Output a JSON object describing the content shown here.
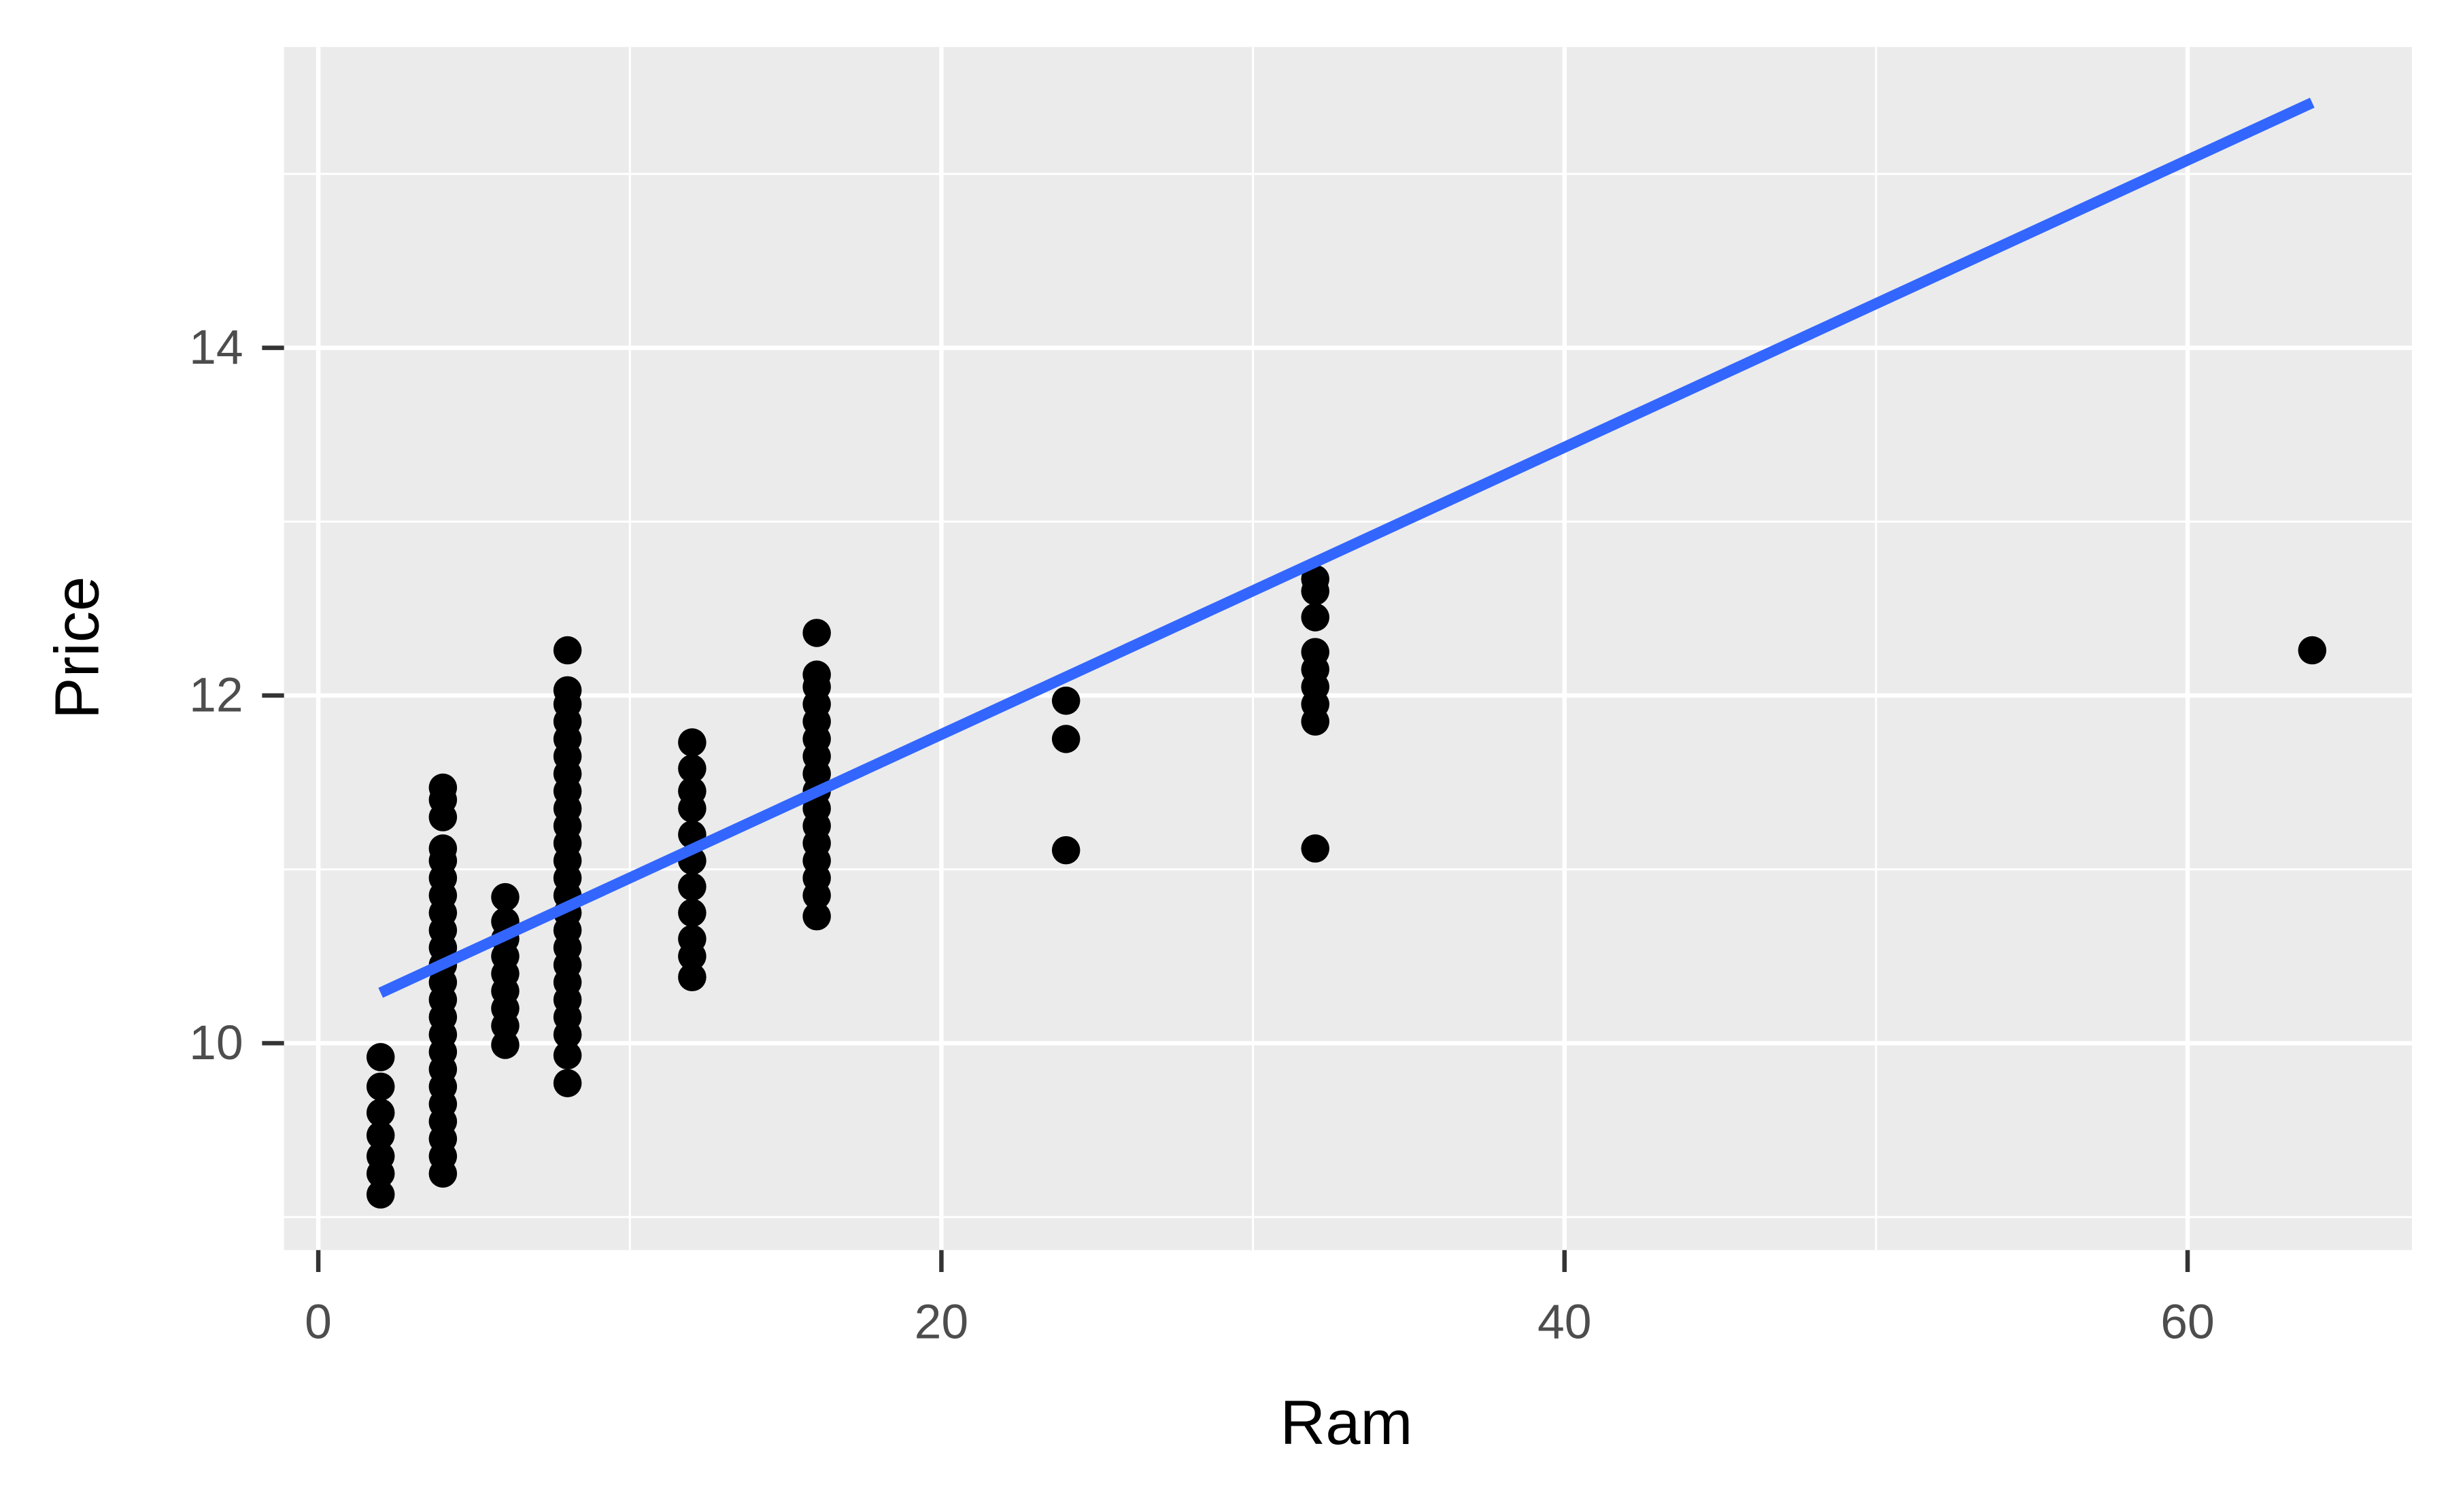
{
  "chart_data": {
    "type": "scatter",
    "x_label": "Ram",
    "y_label": "Price",
    "xlim": [
      -1.1,
      67.2
    ],
    "ylim": [
      8.81,
      15.73
    ],
    "xticks": [
      0,
      20,
      40,
      60
    ],
    "yticks": [
      10,
      12,
      14
    ],
    "x_minor_grid": [
      10,
      30,
      50
    ],
    "y_minor_grid": [
      9,
      11,
      13,
      15
    ],
    "grid": true,
    "panel_color": "#ebebeb",
    "points": {
      "color": "#000000",
      "x": [
        2,
        2,
        2,
        2,
        2,
        2,
        2,
        4,
        4,
        4,
        4,
        4,
        4,
        4,
        4,
        4,
        4,
        4,
        4,
        4,
        4,
        4,
        4,
        4,
        4,
        4,
        4,
        4,
        4,
        4,
        6,
        6,
        6,
        6,
        6,
        6,
        6,
        6,
        6,
        8,
        8,
        8,
        8,
        8,
        8,
        8,
        8,
        8,
        8,
        8,
        8,
        8,
        8,
        8,
        8,
        8,
        8,
        8,
        8,
        8,
        8,
        8,
        8,
        12,
        12,
        12,
        12,
        12,
        12,
        12,
        12,
        12,
        12,
        12,
        16,
        16,
        16,
        16,
        16,
        16,
        16,
        16,
        16,
        16,
        16,
        16,
        16,
        16,
        16,
        16,
        24,
        24,
        24,
        32,
        32,
        32,
        32,
        32,
        32,
        32,
        32,
        32,
        64
      ],
      "values": [
        9.13,
        9.25,
        9.35,
        9.47,
        9.6,
        9.75,
        9.92,
        9.25,
        9.35,
        9.45,
        9.55,
        9.65,
        9.75,
        9.85,
        9.95,
        10.05,
        10.15,
        10.25,
        10.35,
        10.45,
        10.55,
        10.65,
        10.75,
        10.85,
        10.95,
        11.05,
        11.12,
        11.3,
        11.4,
        11.47,
        9.99,
        10.1,
        10.2,
        10.3,
        10.4,
        10.5,
        10.6,
        10.7,
        10.84,
        9.77,
        9.93,
        10.05,
        10.15,
        10.25,
        10.35,
        10.45,
        10.55,
        10.65,
        10.75,
        10.85,
        10.95,
        11.05,
        11.15,
        11.25,
        11.35,
        11.45,
        11.55,
        11.65,
        11.75,
        11.85,
        11.95,
        12.03,
        12.26,
        10.38,
        10.5,
        10.6,
        10.75,
        10.9,
        11.05,
        11.2,
        11.35,
        11.45,
        11.58,
        11.73,
        10.73,
        10.85,
        10.95,
        11.05,
        11.15,
        11.25,
        11.35,
        11.45,
        11.55,
        11.65,
        11.75,
        11.85,
        11.95,
        12.05,
        12.12,
        12.36,
        11.11,
        11.75,
        11.97,
        11.12,
        11.85,
        11.95,
        12.05,
        12.15,
        12.25,
        12.45,
        12.6,
        12.67,
        12.26
      ]
    },
    "trend": {
      "color": "#3366ff",
      "x": [
        2,
        64
      ],
      "values": [
        10.29,
        15.41
      ]
    }
  }
}
